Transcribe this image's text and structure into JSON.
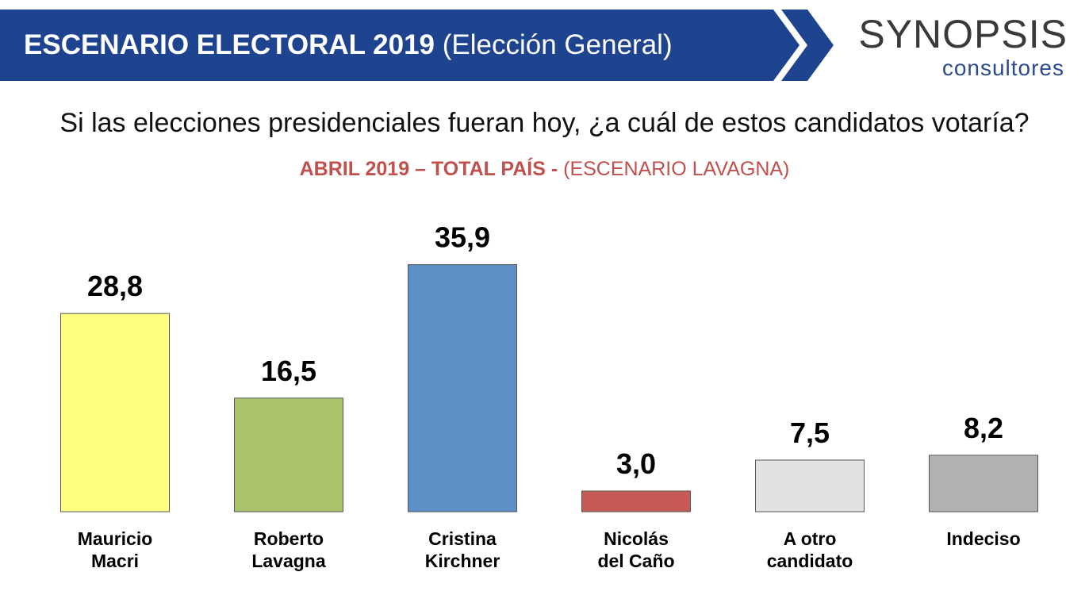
{
  "header": {
    "title_bold": "ESCENARIO ELECTORAL 2019",
    "title_normal": "(Elección General)",
    "banner_color": "#1e4490"
  },
  "logo": {
    "main": "SYNOPSIS",
    "sub": "consultores"
  },
  "question": "Si las elecciones presidenciales fueran hoy, ¿a cuál de estos candidatos votaría?",
  "subtitle": {
    "bold": "ABRIL 2019 – TOTAL PAÍS -",
    "normal": "(ESCENARIO LAVAGNA)"
  },
  "chart_data": {
    "type": "bar",
    "categories": [
      [
        "Mauricio",
        "Macri"
      ],
      [
        "Roberto",
        "Lavagna"
      ],
      [
        "Cristina",
        "Kirchner"
      ],
      [
        "Nicolás",
        "del Caño"
      ],
      [
        "A otro",
        "candidato"
      ],
      [
        "Indeciso"
      ]
    ],
    "values": [
      28.8,
      16.5,
      35.9,
      3.0,
      7.5,
      8.2
    ],
    "value_labels": [
      "28,8",
      "16,5",
      "35,9",
      "3,0",
      "7,5",
      "8,2"
    ],
    "colors": [
      "#ffff80",
      "#a9c46c",
      "#5e90c8",
      "#c85a56",
      "#e2e2e2",
      "#b2b2b2"
    ],
    "ylim": [
      0,
      40
    ],
    "grid": false,
    "legend": "none"
  }
}
